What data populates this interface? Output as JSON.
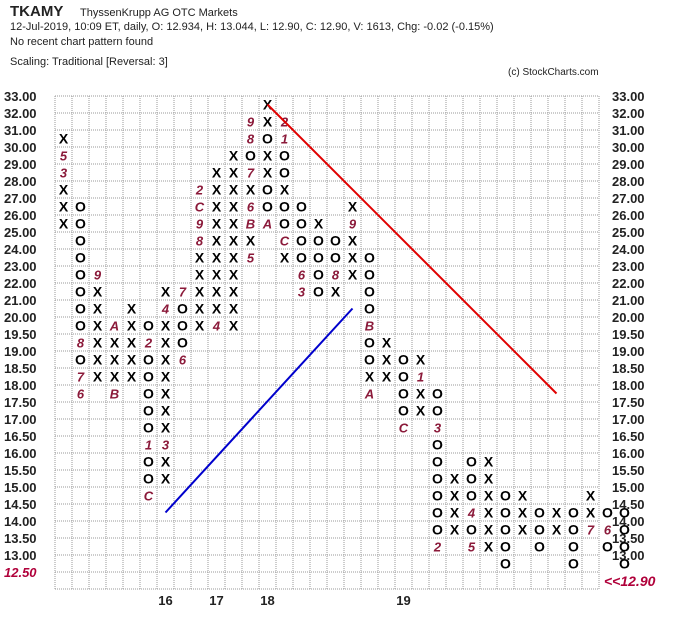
{
  "header": {
    "symbol": "TKAMY",
    "company": "ThyssenKrupp AG  OTC Markets",
    "ohlc": "12-Jul-2019, 10:09 ET, daily, O: 12.934, H: 13.044, L: 12.90, C: 12.90, V: 1613, Chg: -0.02 (-0.15%)",
    "pattern": "No recent chart pattern found",
    "scaling": "Scaling: Traditional [Reversal: 3]",
    "credit": "(c) StockCharts.com",
    "last_price_label": "<<12.90"
  },
  "colors": {
    "x_mark": "#000000",
    "o_mark": "#000000",
    "month_mark": "#8b1a3a",
    "resistance_line": "#e00000",
    "support_line": "#0000cc",
    "grid": "#9a9a9a",
    "highlight_label": "#b0003a"
  },
  "chart_data": {
    "type": "point-and-figure",
    "box_levels": [
      33.0,
      32.0,
      31.0,
      30.0,
      29.0,
      28.0,
      27.0,
      26.0,
      25.0,
      24.0,
      23.0,
      22.0,
      21.0,
      20.0,
      19.5,
      19.0,
      18.5,
      18.0,
      17.5,
      17.0,
      16.5,
      16.0,
      15.5,
      15.0,
      14.5,
      14.0,
      13.5,
      13.0,
      12.5
    ],
    "y_tick_labels": [
      "33.00",
      "32.00",
      "31.00",
      "30.00",
      "29.00",
      "28.00",
      "27.00",
      "26.00",
      "25.00",
      "24.00",
      "23.00",
      "22.00",
      "21.00",
      "20.00",
      "19.50",
      "19.00",
      "18.50",
      "18.00",
      "17.50",
      "17.00",
      "16.50",
      "16.00",
      "15.50",
      "15.00",
      "14.50",
      "14.00",
      "13.50",
      "13.00",
      "12.50"
    ],
    "highlighted_y_label": "12.50",
    "x_labels": [
      {
        "text": "16",
        "column": 6
      },
      {
        "text": "17",
        "column": 9
      },
      {
        "text": "18",
        "column": 12
      },
      {
        "text": "19",
        "column": 20
      }
    ],
    "columns": [
      {
        "type": "X",
        "boxes": [
          "X",
          "X",
          "X",
          "3",
          "5",
          "X"
        ],
        "low": 26.0
      },
      {
        "type": "O",
        "boxes": [
          "6",
          "7",
          "O",
          "8",
          "O",
          "O",
          "O",
          "O",
          "O",
          "O",
          "O",
          "O"
        ],
        "low": 18.0,
        "high": 26.0
      },
      {
        "type": "X",
        "boxes": [
          "X",
          "X",
          "X",
          "X",
          "X",
          "X",
          "9"
        ],
        "low": 18.5,
        "high": 21.0
      },
      {
        "type": "O",
        "boxes": [
          "B",
          "X",
          "X",
          "X",
          "A"
        ],
        "low": 18.0,
        "high": 21.0
      },
      {
        "type": "X",
        "boxes": [
          "X",
          "X",
          "X",
          "X",
          "X"
        ],
        "low": 18.5,
        "high": 20.0
      },
      {
        "type": "O",
        "boxes": [
          "C",
          "O",
          "O",
          "1",
          "O",
          "O",
          "O",
          "O",
          "O",
          "2",
          "O"
        ],
        "low": 15.0,
        "high": 20.0
      },
      {
        "type": "X",
        "boxes": [
          "X",
          "X",
          "3",
          "X",
          "X",
          "X",
          "X",
          "X",
          "X",
          "X",
          "4",
          "X"
        ],
        "low": 15.5,
        "high": 24.0
      },
      {
        "type": "O",
        "boxes": [
          "6",
          "O",
          "O",
          "O",
          "7"
        ],
        "low": 19.0,
        "high": 23.0
      },
      {
        "type": "X",
        "boxes": [
          "X",
          "X",
          "X",
          "X",
          "X",
          "8",
          "9",
          "C",
          "2"
        ],
        "low": 20.0,
        "high": 26.0
      },
      {
        "type": "O",
        "boxes": [
          "4",
          "X",
          "X",
          "X",
          "X",
          "X",
          "X",
          "X",
          "X",
          "X"
        ],
        "low": 20.0,
        "high": 25.0
      },
      {
        "type": "X",
        "boxes": [
          "X",
          "X",
          "X",
          "X",
          "X",
          "X",
          "X",
          "X",
          "X",
          "X",
          "X"
        ],
        "low": 20.0,
        "high": 25.0
      },
      {
        "type": "X",
        "boxes": [
          "5",
          "X",
          "B",
          "6",
          "X",
          "7",
          "O",
          "8",
          "9"
        ],
        "low": 24.0,
        "high": 32.0
      },
      {
        "type": "O",
        "boxes": [
          "A",
          "O",
          "O",
          "X",
          "X",
          "O",
          "X",
          "X",
          "O",
          "X",
          "X",
          "X"
        ],
        "low": 26.0,
        "high": 32.0
      },
      {
        "type": "X",
        "boxes": [
          "X",
          "C",
          "O",
          "O",
          "X",
          "O",
          "O",
          "1",
          "2"
        ],
        "low": 24.0,
        "high": 31.0
      },
      {
        "type": "O",
        "boxes": [
          "3",
          "6",
          "O",
          "O",
          "O",
          "O"
        ],
        "low": 22.0,
        "high": 26.0
      },
      {
        "type": "X",
        "boxes": [
          "O",
          "O",
          "O",
          "O",
          "X"
        ],
        "low": 22.0,
        "high": 26.0
      },
      {
        "type": "O",
        "boxes": [
          "X",
          "8",
          "O",
          "O"
        ],
        "low": 22.0,
        "high": 26.0
      },
      {
        "type": "X",
        "boxes": [
          "X",
          "X",
          "X",
          "9",
          "X"
        ],
        "low": 23.0,
        "high": 26.0
      },
      {
        "type": "O",
        "boxes": [
          "A",
          "X",
          "O",
          "O",
          "B",
          "O",
          "O",
          "O",
          "O"
        ],
        "low": 18.0,
        "high": 26.0
      },
      {
        "type": "X",
        "boxes": [
          "X",
          "X",
          "X"
        ],
        "low": 18.5,
        "high": 19.5
      },
      {
        "type": "O",
        "boxes": [
          "C",
          "O",
          "O",
          "O",
          "O"
        ],
        "low": 17.0,
        "high": 19.0
      },
      {
        "type": "X",
        "boxes": [
          "X",
          "X",
          "1",
          "X"
        ],
        "low": 17.5,
        "high": 18.5
      },
      {
        "type": "O",
        "boxes": [
          "2",
          "O",
          "O",
          "O",
          "O",
          "O",
          "O",
          "3",
          "O",
          "O"
        ],
        "low": 13.5,
        "high": 18.0
      },
      {
        "type": "X",
        "boxes": [
          "X",
          "X",
          "X",
          "X"
        ],
        "low": 14.0,
        "high": 15.5
      },
      {
        "type": "O",
        "boxes": [
          "5",
          "O",
          "4",
          "O",
          "O",
          "O"
        ],
        "low": 13.5,
        "high": 15.0
      },
      {
        "type": "X",
        "boxes": [
          "X",
          "X",
          "X",
          "X",
          "X",
          "X"
        ],
        "low": 13.5,
        "high": 16.0
      },
      {
        "type": "O",
        "boxes": [
          "O",
          "O",
          "O",
          "O",
          "O"
        ],
        "low": 13.0,
        "high": 15.5
      },
      {
        "type": "X",
        "boxes": [
          "X",
          "X",
          "X"
        ],
        "low": 14.0,
        "high": 15.0
      },
      {
        "type": "O",
        "boxes": [
          "O",
          "O",
          "O"
        ],
        "low": 13.5,
        "high": 14.5
      },
      {
        "type": "X",
        "boxes": [
          "X",
          "X"
        ],
        "low": 14.0,
        "high": 14.5
      },
      {
        "type": "O",
        "boxes": [
          "O",
          "O",
          "O",
          "O"
        ],
        "low": 13.0,
        "high": 14.5
      },
      {
        "type": "X",
        "boxes": [
          "7",
          "X",
          "X"
        ],
        "low": 14.0,
        "high": 15.0
      },
      {
        "type": "O",
        "boxes": [
          "O",
          "6",
          "O"
        ],
        "low": 13.5,
        "high": 14.5
      },
      {
        "type": "O",
        "boxes": [
          "O",
          "O",
          "O",
          "O"
        ],
        "low": 13.0,
        "high": 14.5
      }
    ],
    "trend_lines": [
      {
        "name": "resistance",
        "from": {
          "column": 12,
          "value": 33.0
        },
        "to": {
          "column": 29,
          "value": 18.0
        }
      },
      {
        "name": "support",
        "from": {
          "column": 6,
          "value": 14.5
        },
        "to": {
          "column": 17,
          "value": 20.5
        }
      }
    ],
    "grid": true,
    "last_price": 12.9
  }
}
